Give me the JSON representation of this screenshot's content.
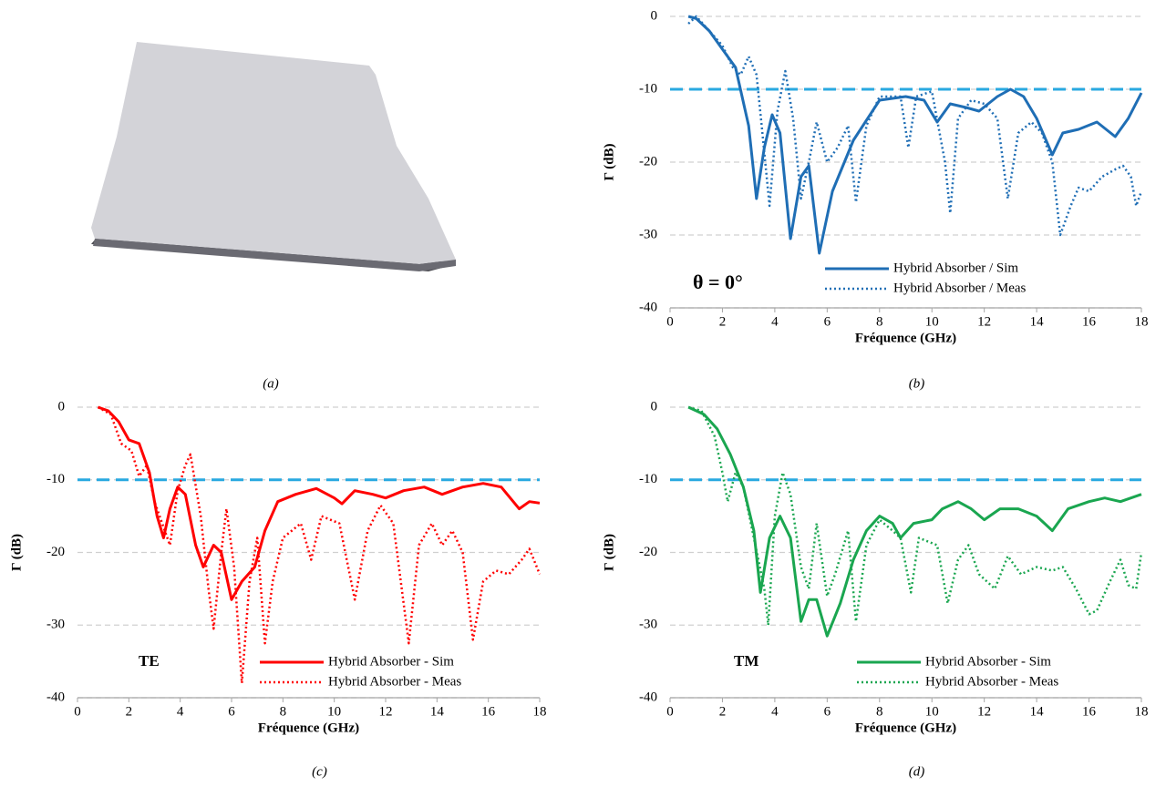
{
  "panel_a": {
    "caption": "(a)"
  },
  "chart_data": [
    {
      "type": "line",
      "caption": "(b)",
      "annotation": "θ = 0°",
      "annotation_color": "#0a1fa8",
      "xlabel": "Fréquence (GHz)",
      "ylabel": "Γ (dB)",
      "xlim": [
        0,
        18
      ],
      "xticks": [
        0,
        2,
        4,
        6,
        8,
        10,
        12,
        14,
        16,
        18
      ],
      "ylim": [
        -40,
        0
      ],
      "yticks": [
        0,
        -10,
        -20,
        -30,
        -40
      ],
      "grid": true,
      "legend": "lower right",
      "reference_line": {
        "value": -10,
        "color": "#29a9e0"
      },
      "series": [
        {
          "name": "Hybrid Absorber / Sim",
          "color": "#1f6eb5",
          "style": "solid",
          "x": [
            0.7,
            1.0,
            1.5,
            2,
            2.5,
            3,
            3.3,
            3.6,
            3.9,
            4.2,
            4.6,
            5,
            5.3,
            5.7,
            6.2,
            7,
            8,
            9,
            9.7,
            10.2,
            10.7,
            11.3,
            11.8,
            12.5,
            13,
            13.5,
            14,
            14.6,
            15,
            15.6,
            16.3,
            17,
            17.5,
            18
          ],
          "values": [
            0,
            -0.3,
            -2,
            -4.5,
            -7,
            -15,
            -25,
            -18,
            -13.5,
            -16,
            -30.5,
            -22,
            -20.5,
            -32.5,
            -24,
            -17,
            -11.5,
            -11,
            -11.5,
            -14.5,
            -12,
            -12.5,
            -13,
            -11,
            -10,
            -11,
            -14,
            -19,
            -16,
            -15.5,
            -14.5,
            -16.5,
            -14,
            -10.5
          ]
        },
        {
          "name": "Hybrid Absorber / Meas",
          "color": "#1f6eb5",
          "style": "dotted",
          "x": [
            0.7,
            1,
            1.5,
            2,
            2.4,
            2.7,
            3,
            3.3,
            3.5,
            3.8,
            4.1,
            4.4,
            4.7,
            5,
            5.3,
            5.6,
            6,
            6.4,
            6.8,
            7.1,
            7.5,
            8,
            8.8,
            9.1,
            9.4,
            10,
            10.5,
            10.7,
            11,
            11.5,
            12,
            12.5,
            12.9,
            13.3,
            13.8,
            14.2,
            14.6,
            14.9,
            15.3,
            15.6,
            16,
            16.5,
            17,
            17.3,
            17.6,
            17.8,
            18
          ],
          "values": [
            -1,
            0,
            -2,
            -4,
            -7,
            -8,
            -5.5,
            -8,
            -15,
            -26,
            -13,
            -7.5,
            -14,
            -25,
            -20,
            -14.5,
            -20,
            -18,
            -15,
            -25.5,
            -15,
            -11,
            -11,
            -18,
            -11,
            -10.3,
            -20,
            -27,
            -14,
            -11.5,
            -12,
            -14,
            -25,
            -16,
            -14.5,
            -16,
            -20,
            -30,
            -26,
            -23.5,
            -24,
            -22,
            -21,
            -20.5,
            -22,
            -26,
            -24
          ]
        }
      ]
    },
    {
      "type": "line",
      "caption": "(c)",
      "annotation": "TE",
      "annotation_color": "#ff0000",
      "xlabel": "Fréquence (GHz)",
      "ylabel": "Γ (dB)",
      "xlim": [
        0,
        18
      ],
      "xticks": [
        0,
        2,
        4,
        6,
        8,
        10,
        12,
        14,
        16,
        18
      ],
      "ylim": [
        -40,
        0
      ],
      "yticks": [
        0,
        -10,
        -20,
        -30,
        -40
      ],
      "grid": true,
      "legend": "lower right",
      "reference_line": {
        "value": -10,
        "color": "#29a9e0"
      },
      "series": [
        {
          "name": "Hybrid Absorber - Sim",
          "color": "#ff0000",
          "style": "solid",
          "x": [
            0.8,
            1.2,
            1.6,
            2,
            2.4,
            2.8,
            3.1,
            3.35,
            3.6,
            3.9,
            4.2,
            4.6,
            4.9,
            5.3,
            5.6,
            6,
            6.4,
            6.9,
            7.3,
            7.8,
            8.5,
            9.3,
            10,
            10.3,
            10.8,
            11.5,
            12,
            12.7,
            13.5,
            14.2,
            15,
            15.8,
            16.5,
            17.2,
            17.6,
            18
          ],
          "values": [
            0,
            -0.5,
            -2,
            -4.5,
            -5,
            -9,
            -15,
            -18,
            -14,
            -11,
            -12,
            -19,
            -22,
            -19,
            -20,
            -26.5,
            -24,
            -22,
            -17,
            -13,
            -12,
            -11.2,
            -12.5,
            -13.3,
            -11.5,
            -12,
            -12.5,
            -11.5,
            -11,
            -12,
            -11,
            -10.5,
            -11,
            -14,
            -13,
            -13.2
          ]
        },
        {
          "name": "Hybrid Absorber - Meas",
          "color": "#ff0000",
          "style": "dotted",
          "x": [
            0.8,
            1.3,
            1.7,
            2.1,
            2.4,
            2.7,
            3,
            3.3,
            3.6,
            3.9,
            4.2,
            4.4,
            4.8,
            5.1,
            5.3,
            5.6,
            5.8,
            6.1,
            6.4,
            6.7,
            7,
            7.3,
            7.6,
            8,
            8.7,
            9.1,
            9.5,
            10.2,
            10.8,
            11.3,
            11.8,
            12.3,
            12.9,
            13.3,
            13.8,
            14.2,
            14.6,
            15,
            15.4,
            15.8,
            16.3,
            16.8,
            17.3,
            17.6,
            18
          ],
          "values": [
            0,
            -1,
            -5,
            -6,
            -9.5,
            -8,
            -13,
            -16,
            -19,
            -11.5,
            -8,
            -6.5,
            -15,
            -25,
            -30.5,
            -20,
            -14,
            -22,
            -38,
            -24,
            -18,
            -32.5,
            -24,
            -18,
            -16,
            -21,
            -15,
            -16,
            -26.5,
            -17,
            -13.5,
            -16,
            -32.5,
            -19,
            -16,
            -19,
            -17,
            -20,
            -32,
            -24,
            -22.5,
            -23,
            -21,
            -19.5,
            -23
          ]
        }
      ]
    },
    {
      "type": "line",
      "caption": "(d)",
      "annotation": "TM",
      "annotation_color": "#1aa650",
      "xlabel": "Fréquence (GHz)",
      "ylabel": "Γ (dB)",
      "xlim": [
        0,
        18
      ],
      "xticks": [
        0,
        2,
        4,
        6,
        8,
        10,
        12,
        14,
        16,
        18
      ],
      "ylim": [
        -40,
        0
      ],
      "yticks": [
        0,
        -10,
        -20,
        -30,
        -40
      ],
      "grid": true,
      "legend": "lower right",
      "reference_line": {
        "value": -10,
        "color": "#29a9e0"
      },
      "series": [
        {
          "name": "Hybrid Absorber - Sim",
          "color": "#1aa650",
          "style": "solid",
          "x": [
            0.7,
            1.3,
            1.8,
            2.3,
            2.8,
            3.2,
            3.45,
            3.8,
            4.2,
            4.6,
            5,
            5.3,
            5.6,
            6,
            6.5,
            7,
            7.5,
            8,
            8.5,
            8.8,
            9.3,
            10,
            10.4,
            11,
            11.5,
            12,
            12.6,
            13.3,
            14,
            14.6,
            15.2,
            16,
            16.6,
            17.2,
            18
          ],
          "values": [
            0,
            -1,
            -3,
            -6.5,
            -11,
            -17,
            -25.5,
            -18,
            -15,
            -18,
            -29.5,
            -26.5,
            -26.5,
            -31.5,
            -27,
            -21,
            -17,
            -15,
            -16,
            -18,
            -16,
            -15.5,
            -14,
            -13,
            -14,
            -15.5,
            -14,
            -14,
            -15,
            -17,
            -14,
            -13,
            -12.5,
            -13,
            -12
          ]
        },
        {
          "name": "Hybrid Absorber - Meas",
          "color": "#1aa650",
          "style": "dotted",
          "x": [
            0.7,
            1.2,
            1.7,
            2,
            2.2,
            2.5,
            2.8,
            3.2,
            3.6,
            3.75,
            4,
            4.3,
            4.6,
            5,
            5.3,
            5.6,
            6,
            6.3,
            6.8,
            7.1,
            7.5,
            8,
            8.5,
            8.8,
            9.2,
            9.5,
            10.2,
            10.6,
            11,
            11.4,
            11.8,
            12.4,
            12.9,
            13.4,
            14,
            14.6,
            15,
            15.5,
            16,
            16.3,
            16.8,
            17.2,
            17.5,
            17.8,
            18
          ],
          "values": [
            0,
            -0.5,
            -4,
            -9,
            -13,
            -9,
            -11,
            -18,
            -25,
            -30,
            -15,
            -9,
            -12,
            -22,
            -25,
            -16,
            -26,
            -23,
            -17,
            -29.5,
            -19,
            -15.5,
            -17,
            -18,
            -25.5,
            -18,
            -19,
            -27,
            -21,
            -19,
            -23,
            -25,
            -20.5,
            -23,
            -22,
            -22.5,
            -22,
            -25,
            -28.5,
            -28,
            -24,
            -21,
            -24.5,
            -25,
            -20
          ]
        }
      ]
    }
  ]
}
